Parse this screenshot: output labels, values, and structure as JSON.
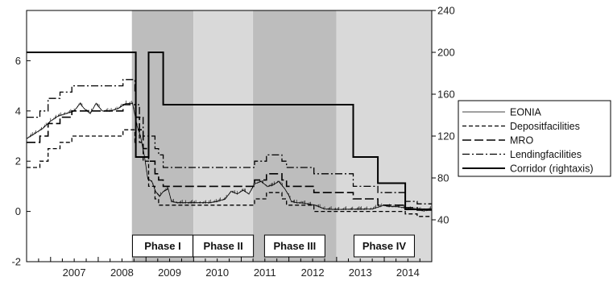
{
  "chart_data": {
    "type": "line",
    "title": "",
    "xlabel": "",
    "ylabel": "",
    "x_tick_labels": [
      "2007",
      "2008",
      "2009",
      "2010",
      "2011",
      "2012",
      "2013",
      "2014"
    ],
    "xlim": [
      "2006-07-01",
      "2014-12-31"
    ],
    "ylim_left": [
      -2,
      8
    ],
    "yticks_left": [
      -2,
      0,
      2,
      4,
      6
    ],
    "ylim_right": [
      0,
      240
    ],
    "yticks_right": [
      40,
      80,
      120,
      160,
      200,
      240
    ],
    "grid": false,
    "legend": {
      "placement": "right, outside plot",
      "entries": [
        "EONIA",
        "Depositfacilities",
        "MRO",
        "Lendingfacilities",
        "Corridor (rightaxis)"
      ]
    },
    "phases": [
      {
        "label": "Phase I",
        "start": "2008-09-15",
        "end": "2009-12-31",
        "shade": "#bdbdbd"
      },
      {
        "label": "Phase II",
        "start": "2010-01-01",
        "end": "2011-03-31",
        "shade": "#d9d9d9"
      },
      {
        "label": "Phase III",
        "start": "2011-04-01",
        "end": "2012-12-31",
        "shade": "#bdbdbd"
      },
      {
        "label": "Phase IV",
        "start": "2013-01-01",
        "end": "2014-12-31",
        "shade": "#d9d9d9"
      }
    ],
    "series": [
      {
        "name": "Depositfacilities",
        "axis": "left",
        "style": "dashed",
        "x": [
          "2006-07-01",
          "2006-10-11",
          "2006-12-13",
          "2007-03-14",
          "2007-06-13",
          "2008-07-09",
          "2008-10-08",
          "2008-10-15",
          "2008-11-12",
          "2008-12-10",
          "2009-01-21",
          "2009-03-11",
          "2009-04-08",
          "2011-04-13",
          "2011-07-13",
          "2011-11-09",
          "2011-12-14",
          "2012-07-11",
          "2014-06-11",
          "2014-09-10",
          "2014-12-31"
        ],
        "y": [
          1.75,
          2.0,
          2.5,
          2.75,
          3.0,
          3.25,
          2.75,
          3.25,
          2.75,
          2.0,
          1.0,
          0.5,
          0.25,
          0.5,
          0.75,
          0.5,
          0.25,
          0.0,
          -0.1,
          -0.2,
          -0.2
        ]
      },
      {
        "name": "MRO",
        "axis": "left",
        "style": "long-dash",
        "x": [
          "2006-07-01",
          "2006-10-11",
          "2006-12-13",
          "2007-03-14",
          "2007-06-13",
          "2008-07-09",
          "2008-10-15",
          "2008-11-12",
          "2008-12-10",
          "2009-01-21",
          "2009-03-11",
          "2009-04-08",
          "2009-05-13",
          "2011-04-13",
          "2011-07-13",
          "2011-11-09",
          "2011-12-14",
          "2012-07-11",
          "2013-05-08",
          "2013-11-13",
          "2014-06-11",
          "2014-09-10",
          "2014-12-31"
        ],
        "y": [
          2.75,
          3.0,
          3.5,
          3.75,
          4.0,
          4.25,
          3.75,
          3.25,
          2.5,
          2.0,
          1.5,
          1.25,
          1.0,
          1.25,
          1.5,
          1.25,
          1.0,
          0.75,
          0.5,
          0.25,
          0.15,
          0.05,
          0.05
        ]
      },
      {
        "name": "Lendingfacilities",
        "axis": "left",
        "style": "dash-dot",
        "x": [
          "2006-07-01",
          "2006-10-11",
          "2006-12-13",
          "2007-03-14",
          "2007-06-13",
          "2008-07-09",
          "2008-10-08",
          "2008-10-15",
          "2008-11-12",
          "2008-12-10",
          "2009-01-21",
          "2009-03-11",
          "2009-04-08",
          "2009-05-13",
          "2011-04-13",
          "2011-07-13",
          "2011-11-09",
          "2011-12-14",
          "2012-07-11",
          "2013-05-08",
          "2013-11-13",
          "2014-06-11",
          "2014-09-10",
          "2014-12-31"
        ],
        "y": [
          3.75,
          4.0,
          4.5,
          4.75,
          5.0,
          5.25,
          4.75,
          4.25,
          3.75,
          3.0,
          3.0,
          2.5,
          2.25,
          1.75,
          2.0,
          2.25,
          2.0,
          1.75,
          1.5,
          1.0,
          0.75,
          0.4,
          0.3,
          0.3
        ]
      },
      {
        "name": "Corridor (rightaxis)",
        "axis": "right",
        "style": "solid-thick",
        "x": [
          "2006-07-01",
          "2008-10-08",
          "2008-10-15",
          "2009-01-21",
          "2009-05-13",
          "2012-12-31",
          "2013-05-08",
          "2013-11-13",
          "2014-06-11",
          "2014-12-31"
        ],
        "y": [
          200,
          200,
          100,
          200,
          150,
          150,
          100,
          75,
          50,
          50
        ]
      },
      {
        "name": "EONIA",
        "axis": "left",
        "style": "solid-thin",
        "x": [
          "2006-07-01",
          "2006-09-01",
          "2006-11-01",
          "2007-01-01",
          "2007-03-01",
          "2007-05-01",
          "2007-07-01",
          "2007-08-15",
          "2007-09-15",
          "2007-11-01",
          "2007-12-15",
          "2008-02-01",
          "2008-04-01",
          "2008-06-01",
          "2008-08-01",
          "2008-09-20",
          "2008-10-10",
          "2008-10-25",
          "2008-11-20",
          "2008-12-20",
          "2009-01-15",
          "2009-02-15",
          "2009-03-15",
          "2009-04-15",
          "2009-05-15",
          "2009-06-20",
          "2009-07-15",
          "2009-09-01",
          "2009-11-01",
          "2010-01-01",
          "2010-03-01",
          "2010-05-01",
          "2010-07-01",
          "2010-08-01",
          "2010-09-01",
          "2010-10-15",
          "2010-12-01",
          "2011-01-15",
          "2011-03-01",
          "2011-04-15",
          "2011-06-01",
          "2011-07-20",
          "2011-09-01",
          "2011-10-15",
          "2011-12-01",
          "2011-12-30",
          "2012-01-20",
          "2012-02-29",
          "2012-04-15",
          "2012-07-20",
          "2012-10-01",
          "2013-01-01",
          "2013-04-01",
          "2013-07-01",
          "2013-10-01",
          "2013-12-30",
          "2014-02-01",
          "2014-04-01",
          "2014-06-01",
          "2014-07-01",
          "2014-09-01",
          "2014-11-01",
          "2014-12-31"
        ],
        "y": [
          2.9,
          3.1,
          3.3,
          3.6,
          3.8,
          3.9,
          4.0,
          4.3,
          4.1,
          3.9,
          4.3,
          4.0,
          4.0,
          4.1,
          4.3,
          4.3,
          3.8,
          3.4,
          3.0,
          2.2,
          1.3,
          1.2,
          0.8,
          0.6,
          0.8,
          0.9,
          0.4,
          0.35,
          0.35,
          0.35,
          0.35,
          0.35,
          0.4,
          0.45,
          0.5,
          0.8,
          0.7,
          0.85,
          0.7,
          1.1,
          1.2,
          1.0,
          1.05,
          1.2,
          0.9,
          0.65,
          0.4,
          0.35,
          0.34,
          0.25,
          0.1,
          0.08,
          0.09,
          0.09,
          0.1,
          0.25,
          0.2,
          0.2,
          0.15,
          0.08,
          0.1,
          0.02,
          0.1
        ]
      }
    ]
  }
}
